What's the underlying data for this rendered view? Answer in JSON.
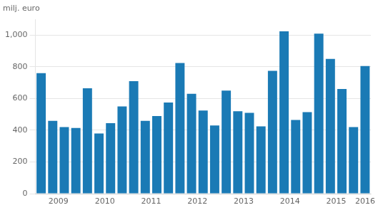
{
  "chart_data": {
    "type": "bar",
    "ylabel": "milj. euro",
    "categories": [
      "2009",
      null,
      null,
      null,
      "2010",
      null,
      null,
      null,
      "2011",
      null,
      null,
      null,
      "2012",
      null,
      null,
      null,
      "2013",
      null,
      null,
      null,
      "2014",
      null,
      null,
      null,
      "2015",
      null,
      null,
      null,
      "2016"
    ],
    "values": [
      760,
      460,
      420,
      415,
      665,
      380,
      445,
      550,
      710,
      460,
      490,
      575,
      825,
      630,
      525,
      430,
      650,
      520,
      510,
      425,
      775,
      1025,
      465,
      515,
      1010,
      850,
      660,
      420,
      805
    ],
    "color": "#1a7ab5",
    "ylim": [
      0,
      1100
    ],
    "yticks": [
      0,
      200,
      400,
      600,
      800,
      1000
    ],
    "grid": true
  }
}
